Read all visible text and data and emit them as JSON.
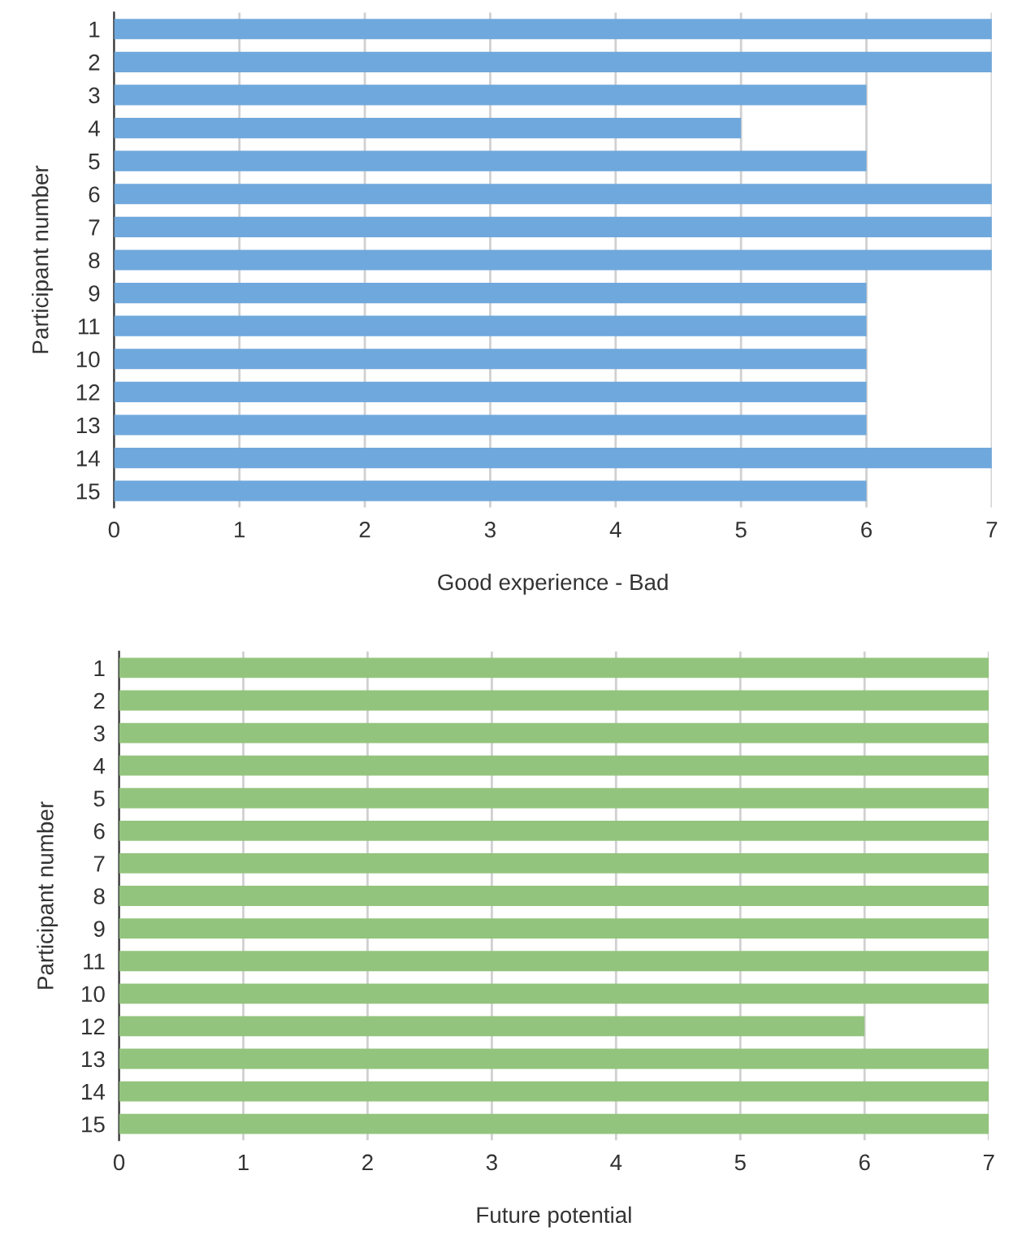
{
  "chart_data": [
    {
      "type": "bar",
      "orientation": "horizontal",
      "xlabel": "Good experience - Bad",
      "ylabel": "Participant number",
      "categories": [
        "1",
        "2",
        "3",
        "4",
        "5",
        "6",
        "7",
        "8",
        "9",
        "11",
        "10",
        "12",
        "13",
        "14",
        "15"
      ],
      "values": [
        7,
        7,
        6,
        5,
        6,
        7,
        7,
        7,
        6,
        6,
        6,
        6,
        6,
        7,
        6
      ],
      "color": "#6fa8dc",
      "xlim": [
        0,
        7
      ],
      "xticks": [
        0,
        1,
        2,
        3,
        4,
        5,
        6,
        7
      ],
      "grid": "x",
      "legend": false
    },
    {
      "type": "bar",
      "orientation": "horizontal",
      "xlabel": "Future potential",
      "ylabel": "Participant number",
      "categories": [
        "1",
        "2",
        "3",
        "4",
        "5",
        "6",
        "7",
        "8",
        "9",
        "11",
        "10",
        "12",
        "13",
        "14",
        "15"
      ],
      "values": [
        7,
        7,
        7,
        7,
        7,
        7,
        7,
        7,
        7,
        7,
        7,
        6,
        7,
        7,
        7
      ],
      "color": "#93c47d",
      "xlim": [
        0,
        7
      ],
      "xticks": [
        0,
        1,
        2,
        3,
        4,
        5,
        6,
        7
      ],
      "grid": "x",
      "legend": false
    }
  ]
}
